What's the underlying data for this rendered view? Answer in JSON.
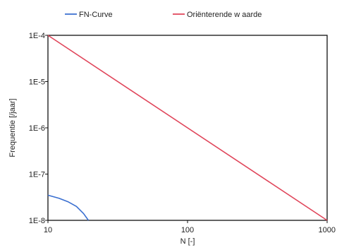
{
  "chart_data": {
    "type": "line",
    "xlabel": "N [-]",
    "ylabel": "Frequentie [/jaar]",
    "x_scale": "log",
    "y_scale": "log",
    "xlim": [
      10,
      1000
    ],
    "ylim": [
      1e-08,
      0.0001
    ],
    "x_ticks": [
      {
        "value": 10,
        "label": "10"
      },
      {
        "value": 100,
        "label": "100"
      },
      {
        "value": 1000,
        "label": "1000"
      }
    ],
    "y_ticks": [
      {
        "value": 1e-08,
        "label": "1E-8"
      },
      {
        "value": 1e-07,
        "label": "1E-7"
      },
      {
        "value": 1e-06,
        "label": "1E-6"
      },
      {
        "value": 1e-05,
        "label": "1E-5"
      },
      {
        "value": 0.0001,
        "label": "1E-4"
      }
    ],
    "grid": false,
    "legend_position": "top",
    "series": [
      {
        "name": "FN-Curve",
        "color": "#3a6fd0",
        "points": [
          [
            10,
            3.5e-08
          ],
          [
            12,
            3e-08
          ],
          [
            14,
            2.5e-08
          ],
          [
            16,
            2e-08
          ],
          [
            18,
            1.4e-08
          ],
          [
            19.5,
            1e-08
          ]
        ]
      },
      {
        "name": "Oriënterende w aarde",
        "color": "#e0455a",
        "points": [
          [
            10,
            0.0001
          ],
          [
            1000,
            1e-08
          ]
        ]
      }
    ]
  }
}
